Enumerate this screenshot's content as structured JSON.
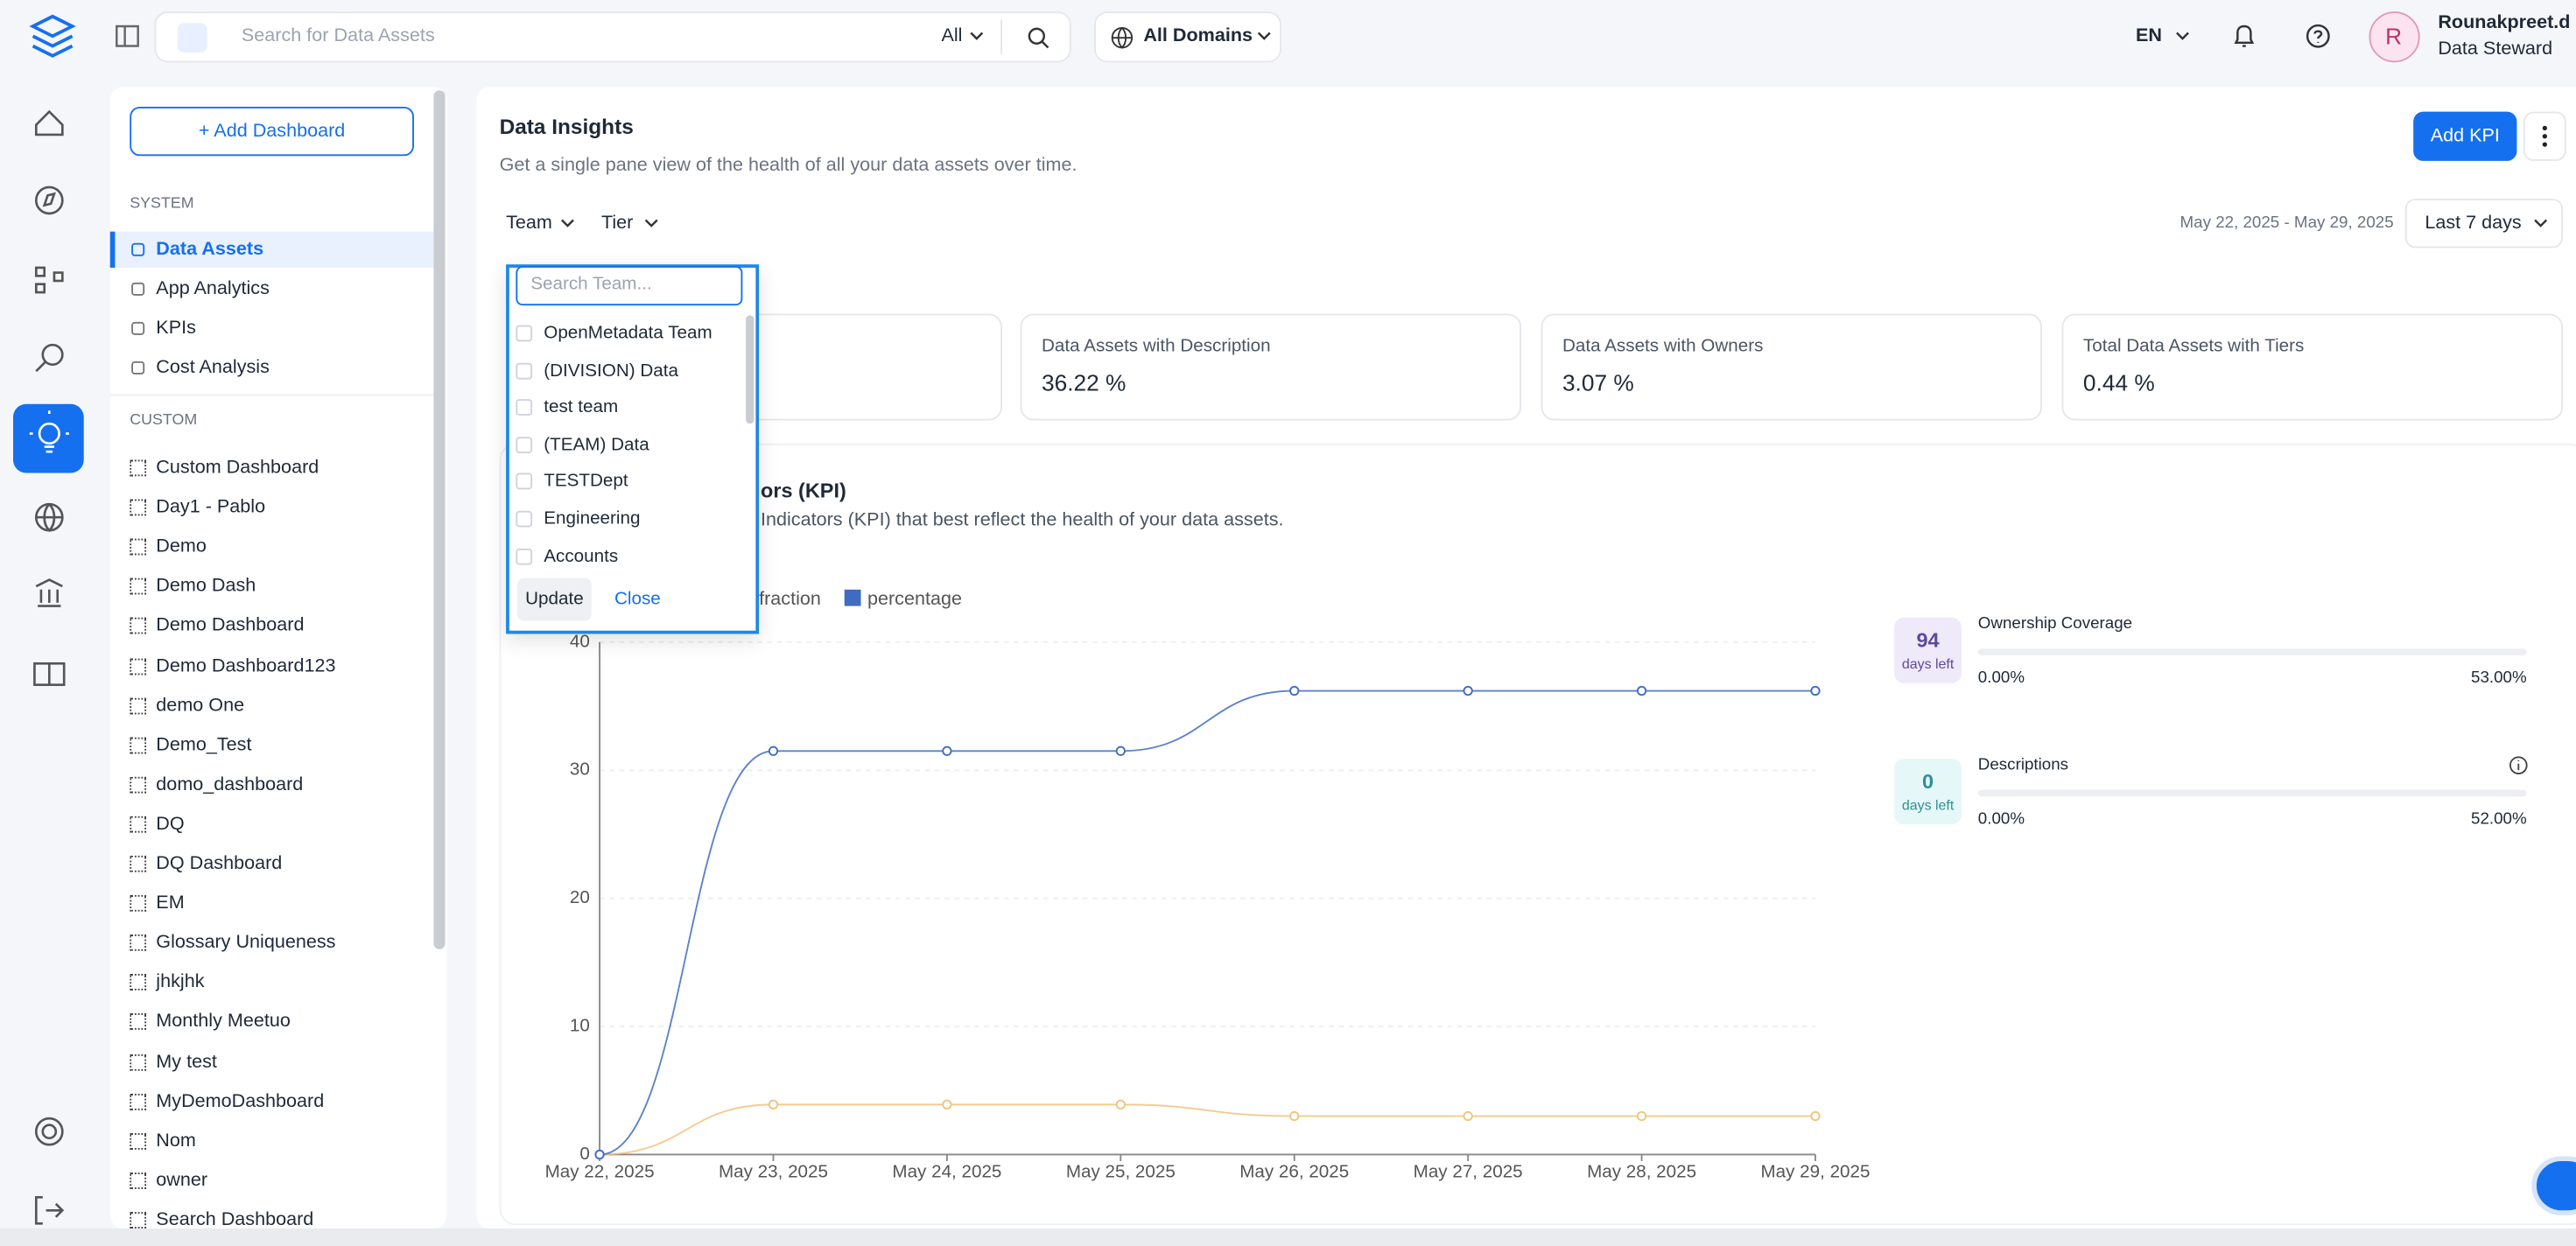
{
  "top_bar": {
    "search_placeholder": "Search for Data Assets",
    "search_scope": "All",
    "domain": "All Domains",
    "language": "EN",
    "avatar_initial": "R",
    "user_name": "Rounakpreet.d",
    "user_role": "Data Steward"
  },
  "sidebar": {
    "add_button": "+ Add Dashboard",
    "system_heading": "SYSTEM",
    "system_items": [
      "Data Assets",
      "App Analytics",
      "KPIs",
      "Cost Analysis"
    ],
    "custom_heading": "CUSTOM",
    "custom_items": [
      "Custom Dashboard",
      "Day1 - Pablo",
      "Demo",
      "Demo Dash",
      "Demo Dashboard",
      "Demo Dashboard123",
      "demo One",
      "Demo_Test",
      "domo_dashboard",
      "DQ",
      "DQ Dashboard",
      "EM",
      "Glossary Uniqueness",
      "jhkjhk",
      "Monthly Meetuo",
      "My test",
      "MyDemoDashboard",
      "Nom",
      "owner",
      "Search Dashboard"
    ]
  },
  "header": {
    "title": "Data Insights",
    "subtitle": "Get a single pane view of the health of all your data assets over time.",
    "add_kpi": "Add KPI",
    "filters": [
      "Team",
      "Tier"
    ],
    "date_range": "May 22, 2025 - May 29, 2025",
    "period": "Last 7 days"
  },
  "summary_cards": [
    {
      "label": "Data Assets with Description",
      "value": "36.22 %"
    },
    {
      "label": "Data Assets with Owners",
      "value": "3.07 %"
    },
    {
      "label": "Total Data Assets with Tiers",
      "value": "0.44 %"
    }
  ],
  "kpi_section": {
    "title_fragment": "ors (KPI)",
    "description_fragment": "Indicators (KPI) that best reflect the health of your data assets."
  },
  "kpi_chart": {
    "type": "line",
    "x": [
      "May 22, 2025",
      "May 23, 2025",
      "May 24, 2025",
      "May 25, 2025",
      "May 26, 2025",
      "May 27, 2025",
      "May 28, 2025",
      "May 29, 2025"
    ],
    "series": [
      {
        "name": "fraction",
        "color": "#f0c37c",
        "values": [
          0,
          3.9,
          3.9,
          3.9,
          3,
          3,
          3,
          3
        ]
      },
      {
        "name": "percentage",
        "color": "#3f6cc0",
        "values": [
          0,
          31.5,
          31.5,
          31.5,
          36.2,
          36.2,
          36.2,
          36.2
        ]
      }
    ],
    "ylim": [
      0,
      40
    ],
    "yticks": [
      0,
      10,
      20,
      30,
      40
    ],
    "grid": true
  },
  "kpi_targets": [
    {
      "days_left_count": 94,
      "days_left_label": "days left",
      "name": "Ownership Coverage",
      "current": "0.00%",
      "target": "53.00%"
    },
    {
      "days_left_count": 0,
      "days_left_label": "days left",
      "name": "Descriptions",
      "current": "0.00%",
      "target": "52.00%"
    }
  ],
  "team_dropdown": {
    "search_placeholder": "Search Team...",
    "options": [
      "OpenMetadata Team",
      "(DIVISION) Data",
      "test team",
      "(TEAM) Data",
      "TESTDept",
      "Engineering",
      "Accounts"
    ],
    "update": "Update",
    "close": "Close"
  }
}
